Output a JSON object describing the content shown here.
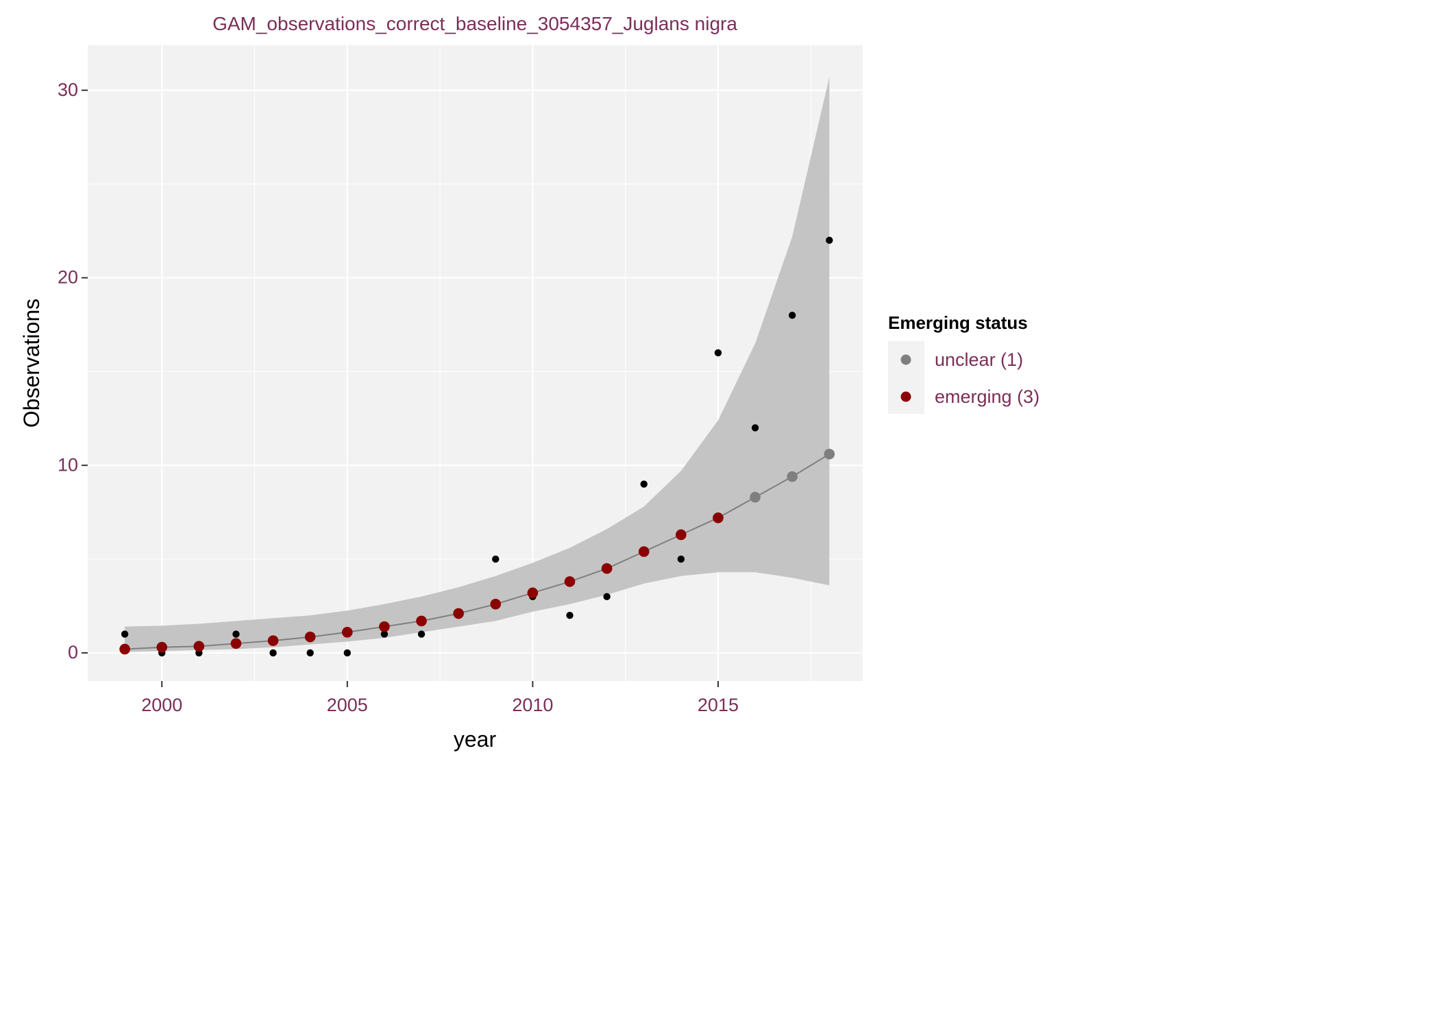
{
  "chart_data": {
    "type": "scatter",
    "title": "GAM_observations_correct_baseline_3054357_Juglans nigra",
    "xlabel": "year",
    "ylabel": "Observations",
    "xlim": [
      1998.0,
      2018.9
    ],
    "ylim": [
      -1.5,
      32.4
    ],
    "x_ticks": [
      2000,
      2005,
      2010,
      2015
    ],
    "y_ticks": [
      0,
      10,
      20,
      30
    ],
    "grid": true,
    "legend": {
      "title": "Emerging status",
      "position": "right",
      "items": [
        {
          "label": "unclear (1)",
          "color": "#7f7f7f"
        },
        {
          "label": "emerging (3)",
          "color": "#8b0000"
        }
      ]
    },
    "colors": {
      "panel": "#f2f2f2",
      "grid": "#ffffff",
      "ribbon": "#c4c4c4",
      "fit_line": "#7f7f7f",
      "observed": "#000000",
      "emerging": "#8b0000",
      "unclear": "#7f7f7f"
    },
    "observed": {
      "x": [
        1999,
        2000,
        2001,
        2002,
        2003,
        2004,
        2005,
        2006,
        2007,
        2008,
        2009,
        2010,
        2011,
        2012,
        2013,
        2014,
        2015,
        2016,
        2017,
        2018
      ],
      "y": [
        1,
        0,
        0,
        1,
        0,
        0,
        0,
        1,
        1,
        2,
        5,
        3,
        2,
        3,
        9,
        5,
        16,
        12,
        18,
        22
      ]
    },
    "fit": {
      "x": [
        1999,
        2000,
        2001,
        2002,
        2003,
        2004,
        2005,
        2006,
        2007,
        2008,
        2009,
        2010,
        2011,
        2012,
        2013,
        2014,
        2015,
        2016,
        2017,
        2018
      ],
      "y": [
        0.2,
        0.3,
        0.35,
        0.5,
        0.65,
        0.85,
        1.1,
        1.4,
        1.7,
        2.1,
        2.6,
        3.2,
        3.8,
        4.5,
        5.4,
        6.3,
        7.2,
        8.3,
        9.4,
        10.6
      ],
      "lower": [
        0.05,
        0.1,
        0.15,
        0.2,
        0.3,
        0.45,
        0.6,
        0.8,
        1.1,
        1.4,
        1.7,
        2.2,
        2.6,
        3.1,
        3.7,
        4.1,
        4.3,
        4.3,
        4.0,
        3.6
      ],
      "upper": [
        1.4,
        1.45,
        1.55,
        1.7,
        1.85,
        2.0,
        2.25,
        2.6,
        3.0,
        3.5,
        4.1,
        4.8,
        5.6,
        6.6,
        7.8,
        9.7,
        12.4,
        16.5,
        22.2,
        30.7
      ],
      "status": [
        "emerging",
        "emerging",
        "emerging",
        "emerging",
        "emerging",
        "emerging",
        "emerging",
        "emerging",
        "emerging",
        "emerging",
        "emerging",
        "emerging",
        "emerging",
        "emerging",
        "emerging",
        "emerging",
        "emerging",
        "unclear",
        "unclear",
        "unclear"
      ]
    }
  }
}
